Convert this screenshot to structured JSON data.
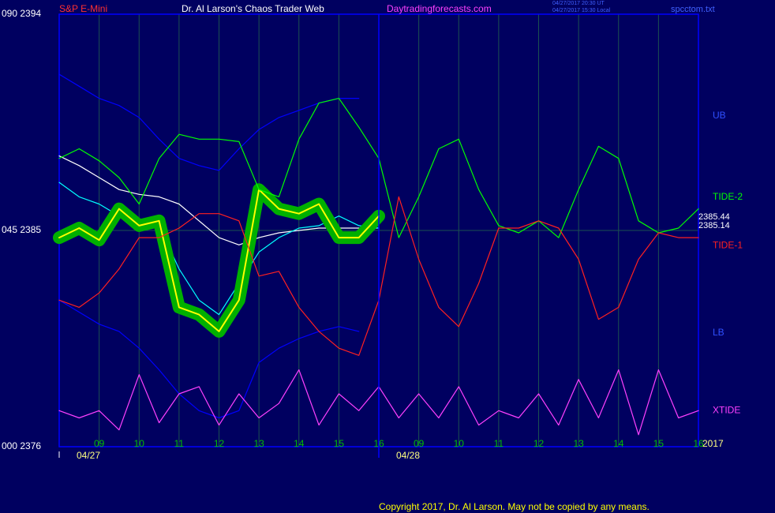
{
  "chart_data": {
    "type": "line",
    "title": "Dr. Al Larson's Chaos Trader Web",
    "instrument": "S&P E-Mini",
    "website": "Daytradingforecasts.com",
    "timestamp_ut": "04/27/2017 20:30 UT",
    "timestamp_local": "04/27/2017 15:30 Local",
    "file_name": "spcctom.txt",
    "copyright": "Copyright 2017, Dr. Al Larson. May not be copied by any means.",
    "dates": [
      {
        "value": 0,
        "label": "04/27"
      },
      {
        "value": 8,
        "label": "04/28"
      }
    ],
    "year": "2017",
    "price_labels": [
      "2385.44",
      "2385.14"
    ],
    "xlim": [
      0,
      16
    ],
    "xticks": [
      {
        "value": 1,
        "label": "09"
      },
      {
        "value": 2,
        "label": "10"
      },
      {
        "value": 3,
        "label": "11"
      },
      {
        "value": 4,
        "label": "12"
      },
      {
        "value": 5,
        "label": "13"
      },
      {
        "value": 6,
        "label": "14"
      },
      {
        "value": 7,
        "label": "15"
      },
      {
        "value": 8,
        "label": "16"
      },
      {
        "value": 9,
        "label": "09"
      },
      {
        "value": 10,
        "label": "10"
      },
      {
        "value": 11,
        "label": "11"
      },
      {
        "value": 12,
        "label": "12"
      },
      {
        "value": 13,
        "label": "13"
      },
      {
        "value": 14,
        "label": "14"
      },
      {
        "value": 15,
        "label": "15"
      },
      {
        "value": 16,
        "label": "16"
      }
    ],
    "ylim": [
      2376,
      2394
    ],
    "yticks": [
      {
        "value": 2394,
        "label": "090  2394"
      },
      {
        "value": 2385,
        "label": "045  2385"
      },
      {
        "value": 2376,
        "label": "000  2376"
      }
    ],
    "grid": true,
    "x": [
      0,
      0.5,
      1,
      1.5,
      2,
      2.5,
      3,
      3.5,
      4,
      4.5,
      5,
      5.5,
      6,
      6.5,
      7,
      7.5,
      8,
      8.5,
      9,
      9.5,
      10,
      10.5,
      11,
      11.5,
      12,
      12.5,
      13,
      13.5,
      14,
      14.5,
      15,
      15.5,
      16
    ],
    "series": [
      {
        "name": "UB",
        "color": "#0000ff",
        "values": [
          2391.5,
          2391.0,
          2390.5,
          2390.2,
          2389.7,
          2388.8,
          2388.0,
          2387.7,
          2387.5,
          2388.4,
          2389.2,
          2389.7,
          2390.0,
          2390.3,
          2390.5,
          2390.5,
          null,
          null,
          null,
          null,
          null,
          null,
          null,
          null,
          null,
          null,
          null,
          null,
          null,
          null,
          null,
          null,
          null
        ]
      },
      {
        "name": "LB",
        "color": "#0000ff",
        "values": [
          2382.1,
          2381.6,
          2381.1,
          2380.8,
          2380.1,
          2379.2,
          2378.2,
          2377.5,
          2377.2,
          2377.5,
          2379.5,
          2380.1,
          2380.5,
          2380.8,
          2381.0,
          2380.8,
          null,
          null,
          null,
          null,
          null,
          null,
          null,
          null,
          null,
          null,
          null,
          null,
          null,
          null,
          null,
          null,
          null
        ]
      },
      {
        "color": "#ffffff",
        "values": [
          2388.1,
          2387.7,
          2387.2,
          2386.7,
          2386.5,
          2386.4,
          2386.1,
          2385.4,
          2384.7,
          2384.4,
          2384.7,
          2384.9,
          2385.0,
          2385.1,
          2385.1,
          2385.1,
          2385.1,
          null,
          null,
          null,
          null,
          null,
          null,
          null,
          null,
          null,
          null,
          null,
          null,
          null,
          null,
          null,
          null
        ]
      },
      {
        "color": "#00ffff",
        "values": [
          2387.0,
          2386.4,
          2386.1,
          2385.6,
          2385.4,
          2385.2,
          2383.4,
          2382.1,
          2381.5,
          2382.8,
          2384.1,
          2384.7,
          2385.1,
          2385.2,
          2385.6,
          2385.2,
          2385.1,
          null,
          null,
          null,
          null,
          null,
          null,
          null,
          null,
          null,
          null,
          null,
          null,
          null,
          null,
          null,
          null
        ]
      },
      {
        "color": "#ffff00",
        "halo": "#00b000",
        "values": [
          2384.7,
          2385.1,
          2384.6,
          2385.9,
          2385.2,
          2385.4,
          2381.8,
          2381.5,
          2380.8,
          2382.1,
          2386.7,
          2385.9,
          2385.7,
          2386.1,
          2384.7,
          2384.7,
          2385.6,
          null,
          null,
          null,
          null,
          null,
          null,
          null,
          null,
          null,
          null,
          null,
          null,
          null,
          null,
          null,
          null
        ]
      },
      {
        "name": "TIDE-2",
        "color": "#00ff00",
        "values": [
          2388.0,
          2388.4,
          2387.9,
          2387.2,
          2386.1,
          2388.0,
          2389.0,
          2388.8,
          2388.8,
          2388.7,
          2386.7,
          2386.4,
          2388.8,
          2390.3,
          2390.5,
          2389.3,
          2388.0,
          2384.7,
          2386.4,
          2388.4,
          2388.8,
          2386.7,
          2385.2,
          2384.9,
          2385.4,
          2384.7,
          2386.7,
          2388.5,
          2388.0,
          2385.4,
          2384.9,
          2385.1,
          2385.9
        ]
      },
      {
        "name": "TIDE-1",
        "color": "#ff2020",
        "values": [
          2382.1,
          2381.8,
          2382.4,
          2383.4,
          2384.7,
          2384.7,
          2385.1,
          2385.7,
          2385.7,
          2385.4,
          2383.1,
          2383.3,
          2381.8,
          2380.8,
          2380.1,
          2379.8,
          2382.1,
          2386.4,
          2383.8,
          2381.8,
          2381.0,
          2382.8,
          2385.1,
          2385.1,
          2385.4,
          2385.1,
          2383.8,
          2381.3,
          2381.8,
          2383.8,
          2384.9,
          2384.7,
          2384.7
        ]
      },
      {
        "name": "XTIDE",
        "color": "#ff40ff",
        "values": [
          2377.5,
          2377.2,
          2377.5,
          2376.7,
          2379.0,
          2377.0,
          2378.2,
          2378.5,
          2376.9,
          2378.2,
          2377.2,
          2377.8,
          2379.2,
          2376.9,
          2378.2,
          2377.5,
          2378.5,
          2377.2,
          2378.2,
          2377.2,
          2378.5,
          2376.9,
          2377.5,
          2377.2,
          2378.2,
          2376.9,
          2378.8,
          2377.2,
          2379.2,
          2376.5,
          2379.2,
          2377.2,
          2377.5
        ]
      }
    ]
  }
}
